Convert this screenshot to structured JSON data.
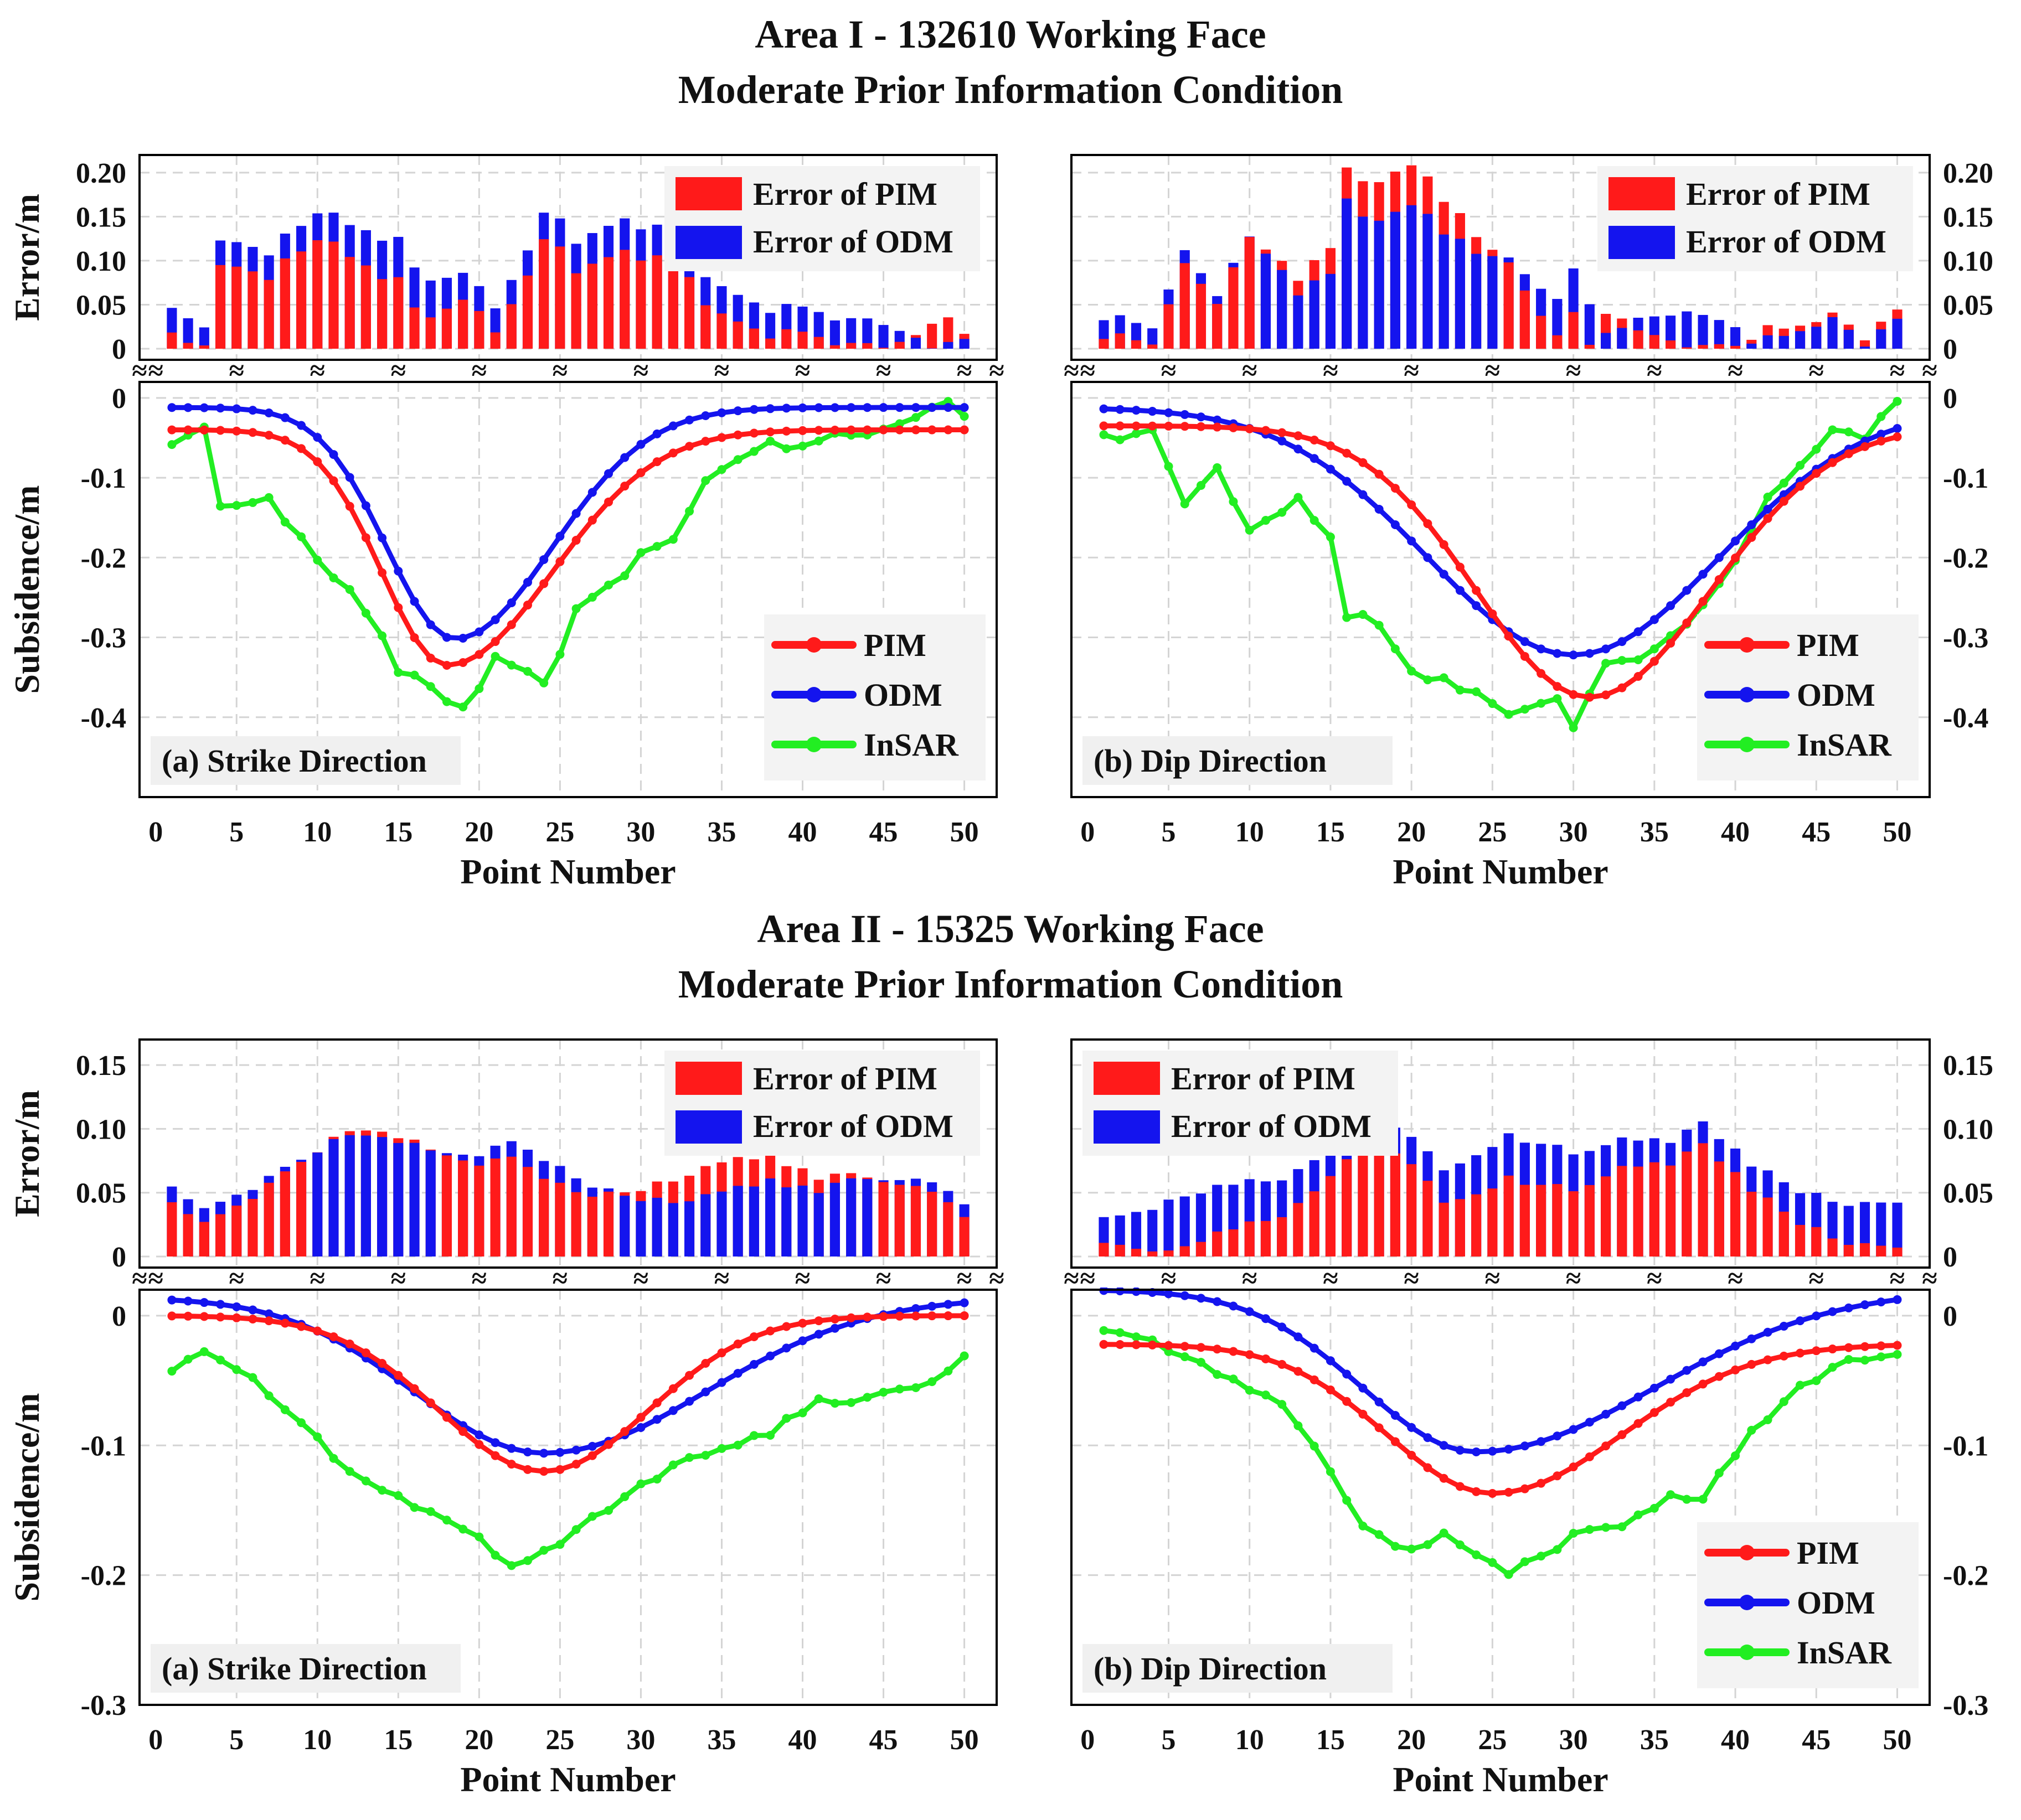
{
  "figure": {
    "area1_title_line1": "Area I - 132610 Working Face",
    "area1_title_line2": "Moderate Prior Information Condition",
    "area2_title_line1": "Area II - 15325 Working Face",
    "area2_title_line2": "Moderate Prior Information Condition",
    "error_axis_label": "Error/m",
    "subsidence_axis_label": "Subsidence/m",
    "x_axis_label": "Point Number",
    "legend_error_pim": "Error of PIM",
    "legend_error_odm": "Error of ODM",
    "legend_pim": "PIM",
    "legend_odm": "ODM",
    "legend_insar": "InSAR",
    "axis_break_mark": "≈",
    "colors": {
      "pim": "#ff1a1a",
      "odm": "#1414ee",
      "insar": "#22ee22"
    }
  },
  "chart_data": [
    {
      "id": "area1-strike",
      "type": "line",
      "panel_label": "(a) Strike Direction",
      "x_ticks": [
        0,
        5,
        10,
        15,
        20,
        25,
        30,
        35,
        40,
        45,
        50
      ],
      "xlim": [
        -1,
        52
      ],
      "error_ylim": [
        0,
        0.22
      ],
      "error_ticks": [
        0,
        0.05,
        0.1,
        0.15,
        0.2
      ],
      "error_tick_labels": [
        "0",
        "0.05",
        "0.10",
        "0.15",
        "0.20"
      ],
      "sub_ylim": [
        -0.5,
        0.02
      ],
      "sub_ticks": [
        0,
        -0.1,
        -0.2,
        -0.3,
        -0.4
      ],
      "sub_tick_labels": [
        "0",
        "-0.1",
        "-0.2",
        "-0.3",
        "-0.4"
      ],
      "legend_position": "bottom-right",
      "tick_side": "left",
      "pim": {
        "type": "gauss",
        "a": 0.295,
        "c": 0.04,
        "mu": 18,
        "s1": 4.0,
        "s2": 6.5,
        "seed": 1
      },
      "odm": {
        "type": "gauss",
        "a": 0.29,
        "c": 0.012,
        "mu": 18.5,
        "s1": 4.2,
        "s2": 6.0,
        "seed": 2
      },
      "insar": {
        "type": "noisy",
        "base": [
          [
            1,
            -0.06
          ],
          [
            3,
            -0.04
          ],
          [
            4,
            -0.14
          ],
          [
            7,
            -0.13
          ],
          [
            10,
            -0.2
          ],
          [
            13,
            -0.27
          ],
          [
            15,
            -0.34
          ],
          [
            19,
            -0.39
          ],
          [
            21,
            -0.33
          ],
          [
            24,
            -0.36
          ],
          [
            26,
            -0.27
          ],
          [
            30,
            -0.2
          ],
          [
            32,
            -0.18
          ],
          [
            34,
            -0.1
          ],
          [
            38,
            -0.06
          ],
          [
            42,
            -0.05
          ],
          [
            46,
            -0.03
          ],
          [
            49,
            0.0
          ],
          [
            50,
            -0.03
          ]
        ],
        "noise": 0.015,
        "seed": 3
      },
      "error_bars": {
        "pim_ref": "pim",
        "odm_ref": "odm",
        "insar_ref": "insar"
      }
    },
    {
      "id": "area1-dip",
      "type": "line",
      "panel_label": "(b) Dip Direction",
      "x_ticks": [
        0,
        5,
        10,
        15,
        20,
        25,
        30,
        35,
        40,
        45,
        50
      ],
      "xlim": [
        -1,
        52
      ],
      "error_ylim": [
        0,
        0.22
      ],
      "error_ticks": [
        0,
        0.05,
        0.1,
        0.15,
        0.2
      ],
      "error_tick_labels": [
        "0",
        "0.05",
        "0.10",
        "0.15",
        "0.20"
      ],
      "sub_ylim": [
        -0.5,
        0.02
      ],
      "sub_ticks": [
        0,
        -0.1,
        -0.2,
        -0.3,
        -0.4
      ],
      "sub_tick_labels": [
        "0",
        "-0.1",
        "-0.2",
        "-0.3",
        "-0.4"
      ],
      "legend_position": "bottom-right",
      "tick_side": "right",
      "pim": {
        "type": "gauss",
        "a": 0.34,
        "c": 0.035,
        "mu": 31,
        "s1": 7.0,
        "s2": 7.5,
        "seed": 4
      },
      "odm": {
        "type": "gauss",
        "a": 0.31,
        "c": 0.012,
        "mu": 30,
        "s1": 9.0,
        "s2": 9.0,
        "seed": 5
      },
      "insar": {
        "type": "noisy",
        "base": [
          [
            1,
            -0.05
          ],
          [
            4,
            -0.04
          ],
          [
            6,
            -0.13
          ],
          [
            8,
            -0.09
          ],
          [
            10,
            -0.16
          ],
          [
            13,
            -0.13
          ],
          [
            15,
            -0.18
          ],
          [
            16,
            -0.27
          ],
          [
            18,
            -0.28
          ],
          [
            20,
            -0.34
          ],
          [
            24,
            -0.37
          ],
          [
            26,
            -0.4
          ],
          [
            29,
            -0.38
          ],
          [
            30,
            -0.41
          ],
          [
            32,
            -0.33
          ],
          [
            34,
            -0.33
          ],
          [
            37,
            -0.28
          ],
          [
            40,
            -0.2
          ],
          [
            42,
            -0.13
          ],
          [
            44,
            -0.09
          ],
          [
            46,
            -0.04
          ],
          [
            48,
            -0.05
          ],
          [
            50,
            0.0
          ]
        ],
        "noise": 0.012,
        "seed": 6
      },
      "error_bars": {
        "pim_ref": "pim",
        "odm_ref": "odm",
        "insar_ref": "insar"
      }
    },
    {
      "id": "area2-strike",
      "type": "line",
      "panel_label": "(a) Strike Direction",
      "x_ticks": [
        0,
        5,
        10,
        15,
        20,
        25,
        30,
        35,
        40,
        45,
        50
      ],
      "xlim": [
        -1,
        52
      ],
      "error_ylim": [
        0,
        0.17
      ],
      "error_ticks": [
        0,
        0.05,
        0.1,
        0.15
      ],
      "error_tick_labels": [
        "0",
        "0.05",
        "0.10",
        "0.15"
      ],
      "sub_ylim": [
        -0.3,
        0.02
      ],
      "sub_ticks": [
        0,
        -0.1,
        -0.2,
        -0.3
      ],
      "sub_tick_labels": [
        "0",
        "-0.1",
        "-0.2",
        "-0.3"
      ],
      "legend_position": "top-right",
      "tick_side": "left",
      "pim": {
        "type": "gauss",
        "a": 0.12,
        "c": 0.0,
        "mu": 24,
        "s1": 6.5,
        "s2": 6.5,
        "seed": 7
      },
      "odm": {
        "type": "gauss",
        "a": 0.12,
        "c": -0.014,
        "mu": 24,
        "s1": 8.0,
        "s2": 10.0,
        "seed": 8
      },
      "insar": {
        "type": "noisy",
        "base": [
          [
            1,
            -0.04
          ],
          [
            3,
            -0.025
          ],
          [
            5,
            -0.04
          ],
          [
            8,
            -0.07
          ],
          [
            12,
            -0.12
          ],
          [
            15,
            -0.14
          ],
          [
            18,
            -0.16
          ],
          [
            20,
            -0.17
          ],
          [
            22,
            -0.195
          ],
          [
            25,
            -0.175
          ],
          [
            30,
            -0.13
          ],
          [
            34,
            -0.105
          ],
          [
            38,
            -0.09
          ],
          [
            41,
            -0.065
          ],
          [
            44,
            -0.065
          ],
          [
            48,
            -0.05
          ],
          [
            50,
            -0.03
          ]
        ],
        "noise": 0.006,
        "seed": 9
      },
      "error_bars": {
        "pim_ref": "pim",
        "odm_ref": "odm",
        "insar_ref": "insar"
      }
    },
    {
      "id": "area2-dip",
      "type": "line",
      "panel_label": "(b) Dip Direction",
      "x_ticks": [
        0,
        5,
        10,
        15,
        20,
        25,
        30,
        35,
        40,
        45,
        50
      ],
      "xlim": [
        -1,
        52
      ],
      "error_ylim": [
        0,
        0.17
      ],
      "error_ticks": [
        0,
        0.05,
        0.1,
        0.15
      ],
      "error_tick_labels": [
        "0",
        "0.05",
        "0.10",
        "0.15"
      ],
      "sub_ylim": [
        -0.3,
        0.02
      ],
      "sub_ticks": [
        0,
        -0.1,
        -0.2,
        -0.3
      ],
      "sub_tick_labels": [
        "0",
        "-0.1",
        "-0.2",
        "-0.3"
      ],
      "legend_position": "bottom-right",
      "tick_side": "right",
      "pim": {
        "type": "gauss",
        "a": 0.115,
        "c": 0.022,
        "mu": 25,
        "s1": 6.5,
        "s2": 8.0,
        "seed": 10
      },
      "odm": {
        "type": "gauss",
        "a": 0.125,
        "c": -0.02,
        "mu": 24,
        "s1": 7.0,
        "s2": 11.0,
        "seed": 11
      },
      "insar": {
        "type": "noisy",
        "base": [
          [
            1,
            -0.01
          ],
          [
            5,
            -0.025
          ],
          [
            8,
            -0.045
          ],
          [
            12,
            -0.07
          ],
          [
            15,
            -0.12
          ],
          [
            17,
            -0.165
          ],
          [
            20,
            -0.18
          ],
          [
            22,
            -0.17
          ],
          [
            26,
            -0.2
          ],
          [
            30,
            -0.17
          ],
          [
            33,
            -0.16
          ],
          [
            36,
            -0.14
          ],
          [
            38,
            -0.14
          ],
          [
            41,
            -0.09
          ],
          [
            44,
            -0.055
          ],
          [
            47,
            -0.035
          ],
          [
            50,
            -0.03
          ]
        ],
        "noise": 0.006,
        "seed": 12
      },
      "error_bars": {
        "pim_ref": "pim",
        "odm_ref": "odm",
        "insar_ref": "insar"
      }
    }
  ]
}
